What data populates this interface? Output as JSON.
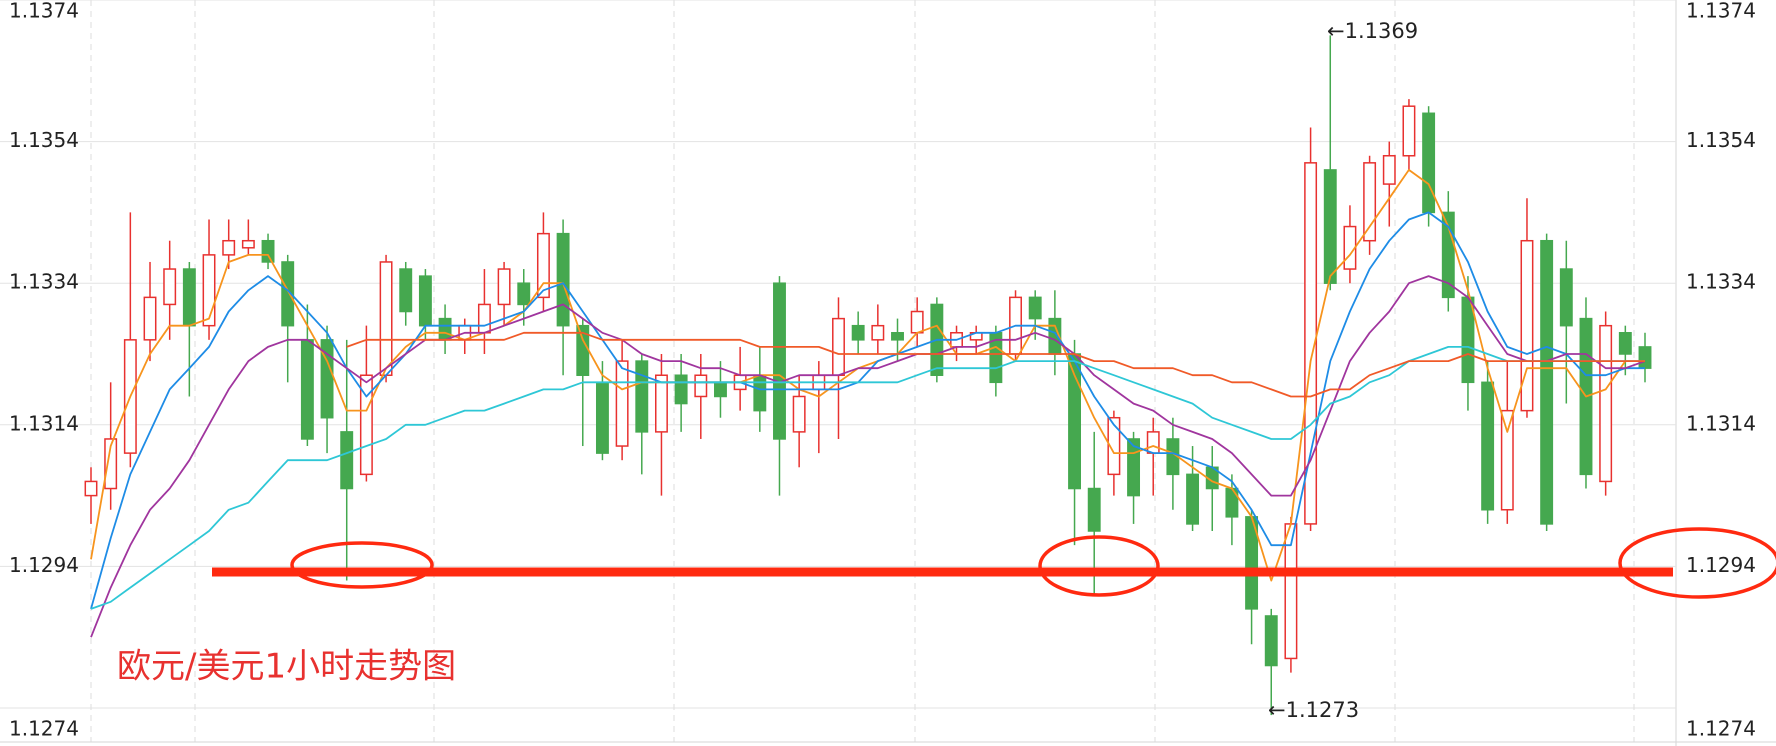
{
  "chart_data": {
    "type": "candlestick",
    "title": "欧元/美元1小时走势图",
    "annotations": [
      "←1.1369",
      "←1.1273"
    ],
    "up_color": "#e8312f",
    "down_color": "#45a84f",
    "ylim": [
      1.1274,
      1.1374
    ],
    "yticks": [
      1.1274,
      1.1294,
      1.1314,
      1.1334,
      1.1354,
      1.1374
    ],
    "grid": true,
    "open": [
      1.1304,
      1.1305,
      1.131,
      1.1326,
      1.1331,
      1.1336,
      1.1328,
      1.1338,
      1.1339,
      1.134,
      1.1337,
      1.1326,
      1.1326,
      1.1313,
      1.1307,
      1.1321,
      1.1336,
      1.1335,
      1.1329,
      1.1326,
      1.1327,
      1.1331,
      1.1334,
      1.1332,
      1.1341,
      1.1328,
      1.132,
      1.1311,
      1.1323,
      1.1313,
      1.1321,
      1.1318,
      1.132,
      1.1319,
      1.1321,
      1.1334,
      1.1313,
      1.1319,
      1.1321,
      1.1328,
      1.1326,
      1.1327,
      1.1327,
      1.1331,
      1.1325,
      1.1326,
      1.1327,
      1.1324,
      1.1332,
      1.1329,
      1.1324,
      1.1305,
      1.1307,
      1.1312,
      1.131,
      1.1312,
      1.1307,
      1.1308,
      1.1305,
      1.1301,
      1.1287,
      1.1281,
      1.13,
      1.135,
      1.1336,
      1.134,
      1.1348,
      1.1352,
      1.1358,
      1.1344,
      1.1332,
      1.132,
      1.1302,
      1.1316,
      1.134,
      1.1336,
      1.1329,
      1.1306,
      1.1327,
      1.1325
    ],
    "high": [
      1.1308,
      1.132,
      1.1344,
      1.1337,
      1.134,
      1.1337,
      1.1343,
      1.1343,
      1.1343,
      1.1341,
      1.1338,
      1.1331,
      1.1328,
      1.1326,
      1.1328,
      1.1338,
      1.1337,
      1.1336,
      1.1331,
      1.1329,
      1.1336,
      1.1337,
      1.1336,
      1.1344,
      1.1343,
      1.1329,
      1.1323,
      1.1326,
      1.1324,
      1.1324,
      1.1324,
      1.1324,
      1.1323,
      1.1325,
      1.1325,
      1.1335,
      1.1321,
      1.1323,
      1.1332,
      1.133,
      1.1331,
      1.1329,
      1.1332,
      1.1332,
      1.1328,
      1.1328,
      1.1328,
      1.1333,
      1.1333,
      1.1333,
      1.1326,
      1.1313,
      1.1316,
      1.1313,
      1.1315,
      1.1315,
      1.1311,
      1.1311,
      1.1307,
      1.1302,
      1.1288,
      1.1301,
      1.1356,
      1.1369,
      1.1345,
      1.1352,
      1.1354,
      1.136,
      1.1359,
      1.1347,
      1.1335,
      1.1323,
      1.1323,
      1.1346,
      1.1341,
      1.134,
      1.1332,
      1.133,
      1.1328,
      1.1327
    ],
    "low": [
      1.13,
      1.1302,
      1.1308,
      1.1323,
      1.1326,
      1.1318,
      1.1326,
      1.1336,
      1.1338,
      1.1336,
      1.132,
      1.1311,
      1.131,
      1.1292,
      1.1306,
      1.132,
      1.1328,
      1.1326,
      1.1324,
      1.1324,
      1.1324,
      1.1328,
      1.1328,
      1.133,
      1.1321,
      1.1311,
      1.1309,
      1.1309,
      1.1307,
      1.1304,
      1.1313,
      1.1312,
      1.1315,
      1.1316,
      1.1313,
      1.1304,
      1.1308,
      1.131,
      1.1312,
      1.1324,
      1.1324,
      1.1323,
      1.1325,
      1.132,
      1.1323,
      1.1324,
      1.1318,
      1.1323,
      1.1326,
      1.1321,
      1.1297,
      1.129,
      1.1304,
      1.13,
      1.1304,
      1.1302,
      1.1299,
      1.1299,
      1.1297,
      1.1283,
      1.1273,
      1.1279,
      1.1299,
      1.1333,
      1.1334,
      1.1338,
      1.1342,
      1.135,
      1.1342,
      1.133,
      1.1316,
      1.13,
      1.13,
      1.1315,
      1.1299,
      1.1317,
      1.1305,
      1.1304,
      1.1321,
      1.132
    ],
    "close": [
      1.1306,
      1.1312,
      1.1326,
      1.1332,
      1.1336,
      1.1328,
      1.1338,
      1.134,
      1.134,
      1.1337,
      1.1328,
      1.1312,
      1.1315,
      1.1305,
      1.1321,
      1.1337,
      1.133,
      1.1328,
      1.1326,
      1.1328,
      1.1331,
      1.1336,
      1.1331,
      1.1341,
      1.1328,
      1.1321,
      1.131,
      1.1323,
      1.1313,
      1.1321,
      1.1317,
      1.1321,
      1.1318,
      1.1321,
      1.1316,
      1.1312,
      1.1318,
      1.1321,
      1.1329,
      1.1326,
      1.1328,
      1.1326,
      1.133,
      1.1321,
      1.1327,
      1.1327,
      1.132,
      1.1332,
      1.1329,
      1.1324,
      1.1305,
      1.1299,
      1.1315,
      1.1304,
      1.1313,
      1.1307,
      1.13,
      1.1305,
      1.1301,
      1.1288,
      1.128,
      1.13,
      1.1351,
      1.1334,
      1.1342,
      1.1351,
      1.1352,
      1.1359,
      1.1344,
      1.1332,
      1.132,
      1.1302,
      1.1316,
      1.134,
      1.13,
      1.1328,
      1.1307,
      1.1328,
      1.1324,
      1.1322
    ],
    "series": [
      {
        "color": "#f7941d",
        "values": [
          1.1295,
          1.1311,
          1.1318,
          1.1324,
          1.1328,
          1.1328,
          1.1329,
          1.1337,
          1.1338,
          1.1338,
          1.1333,
          1.1328,
          1.1323,
          1.1316,
          1.1316,
          1.1322,
          1.1325,
          1.1327,
          1.1327,
          1.1326,
          1.1327,
          1.1328,
          1.133,
          1.1334,
          1.1334,
          1.1326,
          1.1321,
          1.1319,
          1.132,
          1.132,
          1.132,
          1.132,
          1.132,
          1.132,
          1.1321,
          1.1321,
          1.1319,
          1.1318,
          1.132,
          1.1322,
          1.1323,
          1.1324,
          1.1327,
          1.1328,
          1.1324,
          1.1324,
          1.1325,
          1.1323,
          1.1328,
          1.1328,
          1.1321,
          1.1315,
          1.131,
          1.131,
          1.1311,
          1.131,
          1.1308,
          1.1306,
          1.1305,
          1.1301,
          1.1292,
          1.13,
          1.1323,
          1.1335,
          1.1338,
          1.1342,
          1.1346,
          1.135,
          1.1348,
          1.1342,
          1.1333,
          1.1322,
          1.1313,
          1.1322,
          1.1322,
          1.1322,
          1.1318,
          1.1319,
          1.1323,
          1.1323
        ]
      },
      {
        "color": "#1e8ce6",
        "values": [
          1.1288,
          1.1298,
          1.1307,
          1.1313,
          1.1319,
          1.1322,
          1.1325,
          1.133,
          1.1333,
          1.1335,
          1.1333,
          1.133,
          1.1327,
          1.1322,
          1.1318,
          1.1321,
          1.1324,
          1.1328,
          1.1328,
          1.1328,
          1.1328,
          1.1329,
          1.133,
          1.1333,
          1.1334,
          1.133,
          1.1326,
          1.1322,
          1.1321,
          1.132,
          1.132,
          1.132,
          1.132,
          1.132,
          1.1319,
          1.1319,
          1.1319,
          1.1319,
          1.1319,
          1.132,
          1.1323,
          1.1324,
          1.1325,
          1.1326,
          1.1326,
          1.1327,
          1.1327,
          1.1328,
          1.1328,
          1.1327,
          1.1323,
          1.1318,
          1.1314,
          1.1311,
          1.131,
          1.131,
          1.1309,
          1.1308,
          1.1306,
          1.1302,
          1.1297,
          1.1297,
          1.131,
          1.1323,
          1.133,
          1.1336,
          1.134,
          1.1343,
          1.1344,
          1.1342,
          1.1337,
          1.133,
          1.1325,
          1.1324,
          1.1325,
          1.1324,
          1.1321,
          1.1321,
          1.1322,
          1.1322
        ]
      },
      {
        "color": "#a0359e",
        "values": [
          1.1284,
          1.1291,
          1.1297,
          1.1302,
          1.1305,
          1.1309,
          1.1314,
          1.1319,
          1.1323,
          1.1325,
          1.1326,
          1.1326,
          1.1324,
          1.1322,
          1.132,
          1.1322,
          1.1324,
          1.1326,
          1.1326,
          1.1327,
          1.1327,
          1.1328,
          1.1329,
          1.133,
          1.1331,
          1.1329,
          1.1327,
          1.1326,
          1.1324,
          1.1323,
          1.1323,
          1.1322,
          1.1322,
          1.1321,
          1.1321,
          1.132,
          1.1321,
          1.1321,
          1.1321,
          1.1322,
          1.1322,
          1.1323,
          1.1324,
          1.1324,
          1.1325,
          1.1325,
          1.1326,
          1.1326,
          1.1327,
          1.1326,
          1.1324,
          1.1321,
          1.1319,
          1.1317,
          1.1316,
          1.1314,
          1.1313,
          1.1312,
          1.131,
          1.1307,
          1.1304,
          1.1304,
          1.1309,
          1.1316,
          1.1323,
          1.1327,
          1.133,
          1.1334,
          1.1335,
          1.1334,
          1.1332,
          1.1328,
          1.1324,
          1.1323,
          1.1323,
          1.1324,
          1.1324,
          1.1322,
          1.1322,
          1.1323
        ]
      },
      {
        "color": "#2ec7d6",
        "values": [
          1.1288,
          1.1289,
          1.1291,
          1.1293,
          1.1295,
          1.1297,
          1.1299,
          1.1302,
          1.1303,
          1.1306,
          1.1309,
          1.1309,
          1.1309,
          1.131,
          1.1311,
          1.1312,
          1.1314,
          1.1314,
          1.1315,
          1.1316,
          1.1316,
          1.1317,
          1.1318,
          1.1319,
          1.1319,
          1.132,
          1.132,
          1.132,
          1.132,
          1.132,
          1.132,
          1.132,
          1.132,
          1.132,
          1.132,
          1.132,
          1.132,
          1.132,
          1.132,
          1.132,
          1.132,
          1.132,
          1.1321,
          1.1322,
          1.1322,
          1.1322,
          1.1322,
          1.1323,
          1.1323,
          1.1323,
          1.1323,
          1.1322,
          1.1321,
          1.132,
          1.1319,
          1.1318,
          1.1317,
          1.1315,
          1.1314,
          1.1313,
          1.1312,
          1.1312,
          1.1314,
          1.1317,
          1.1318,
          1.132,
          1.1321,
          1.1323,
          1.1324,
          1.1325,
          1.1325,
          1.1324,
          1.1323,
          1.1323,
          1.1323,
          1.1323,
          1.1323,
          1.1323,
          1.1323,
          1.1323
        ]
      },
      {
        "color": "#f05a28",
        "values": [
          null,
          null,
          null,
          null,
          null,
          null,
          null,
          null,
          null,
          null,
          null,
          null,
          null,
          1.1325,
          1.1326,
          1.1326,
          1.1326,
          1.1326,
          1.1326,
          1.1326,
          1.1326,
          1.1326,
          1.1327,
          1.1327,
          1.1327,
          1.1327,
          1.1326,
          1.1326,
          1.1326,
          1.1326,
          1.1326,
          1.1326,
          1.1326,
          1.1326,
          1.1325,
          1.1325,
          1.1325,
          1.1325,
          1.1324,
          1.1324,
          1.1324,
          1.1324,
          1.1324,
          1.1324,
          1.1324,
          1.1324,
          1.1324,
          1.1324,
          1.1324,
          1.1324,
          1.1324,
          1.1323,
          1.1323,
          1.1322,
          1.1322,
          1.1322,
          1.1321,
          1.1321,
          1.132,
          1.132,
          1.1319,
          1.1318,
          1.1318,
          1.1319,
          1.1319,
          1.1321,
          1.1322,
          1.1323,
          1.1323,
          1.1323,
          1.1324,
          1.1323,
          1.1323,
          1.1323,
          1.1323,
          1.1323,
          1.1323,
          1.1323,
          1.1323,
          1.1323
        ]
      }
    ]
  }
}
